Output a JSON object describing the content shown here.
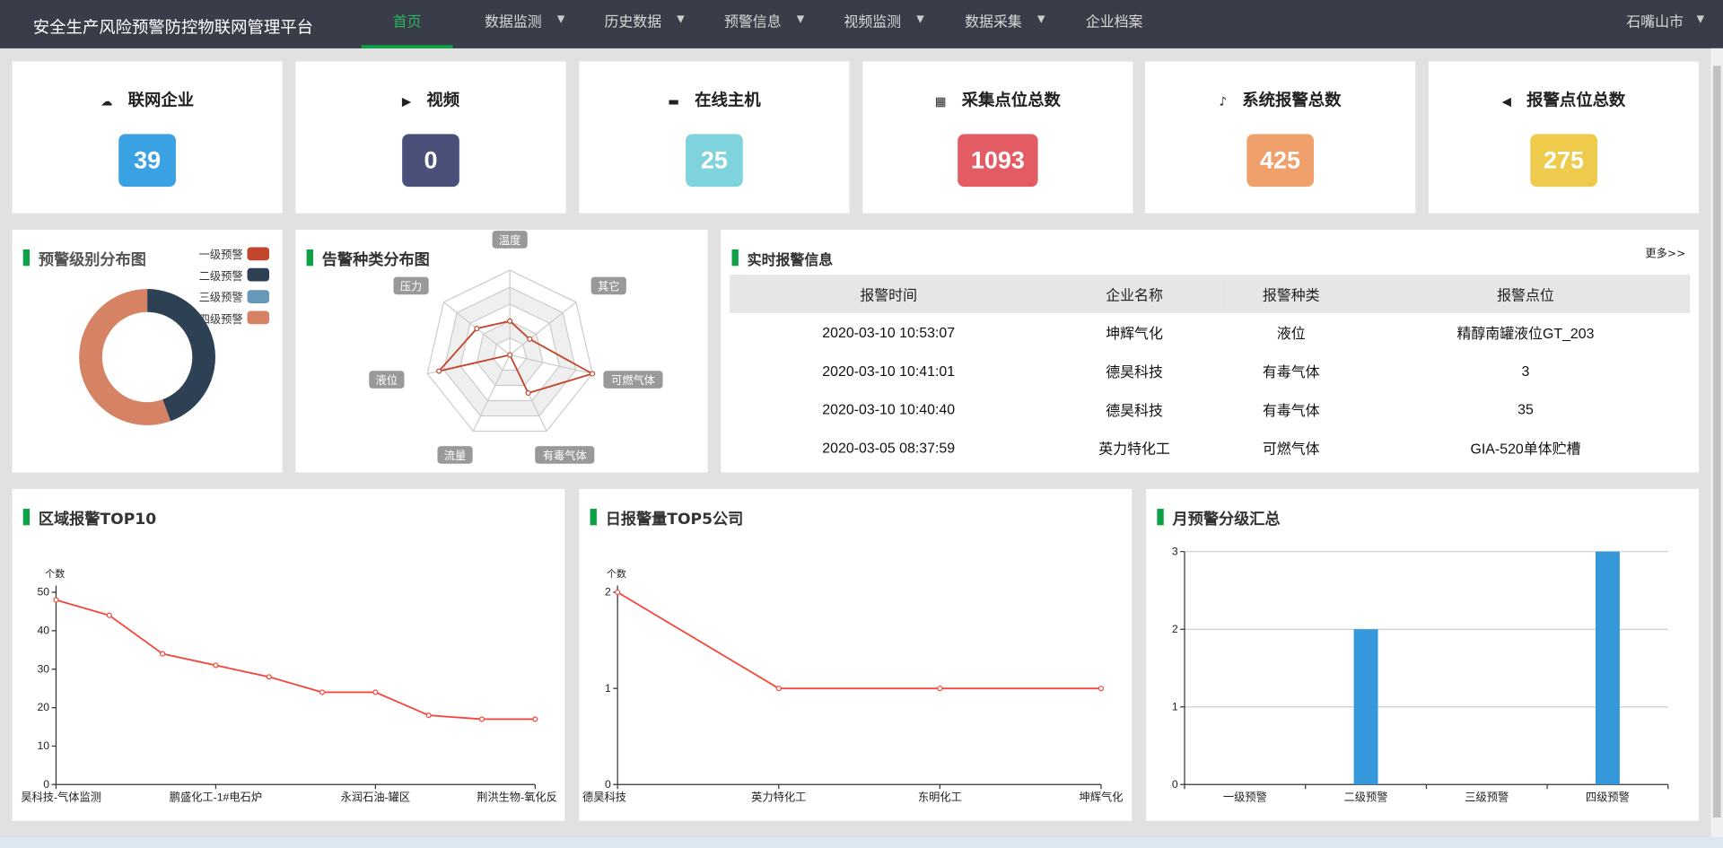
{
  "header": {
    "title": "安全生产风险预警防控物联网管理平台",
    "nav": [
      {
        "label": "首页",
        "active": true,
        "dropdown": false
      },
      {
        "label": "数据监测",
        "dropdown": true
      },
      {
        "label": "历史数据",
        "dropdown": true
      },
      {
        "label": "预警信息",
        "dropdown": true
      },
      {
        "label": "视频监测",
        "dropdown": true
      },
      {
        "label": "数据采集",
        "dropdown": true
      },
      {
        "label": "企业档案",
        "dropdown": false
      }
    ],
    "city": "石嘴山市"
  },
  "stats": [
    {
      "label": "联网企业",
      "value": "39",
      "icon": "cloud-upload-icon",
      "color": "#3aa1e2"
    },
    {
      "label": "视频",
      "value": "0",
      "icon": "video-icon",
      "color": "#4a5079"
    },
    {
      "label": "在线主机",
      "value": "25",
      "icon": "window-icon",
      "color": "#7fd3dc"
    },
    {
      "label": "采集点位总数",
      "value": "1093",
      "icon": "calendar-icon",
      "color": "#e45c63"
    },
    {
      "label": "系统报警总数",
      "value": "425",
      "icon": "bell-icon",
      "color": "#f0a06a"
    },
    {
      "label": "报警点位总数",
      "value": "275",
      "icon": "speaker-icon",
      "color": "#efcb4d"
    }
  ],
  "level_chart": {
    "title": "预警级别分布图",
    "chart_data": {
      "type": "pie",
      "donut": true,
      "categories": [
        "一级预警",
        "二级预警",
        "三级预警",
        "四级预警"
      ],
      "values": [
        0,
        4,
        0,
        5
      ],
      "colors": [
        "#c1462b",
        "#2e4154",
        "#6599b7",
        "#d58265"
      ]
    }
  },
  "radar_chart": {
    "title": "告警种类分布图",
    "chart_data": {
      "type": "radar",
      "indicators": [
        "温度",
        "其它",
        "可燃气体",
        "有毒气体",
        "流量",
        "液位",
        "压力"
      ],
      "values": [
        2,
        1.5,
        5,
        2.5,
        0,
        4.3,
        2.5
      ],
      "max": 5,
      "color": "#c1462b"
    }
  },
  "realtime": {
    "title": "实时报警信息",
    "more": "更多>>",
    "columns": [
      "报警时间",
      "企业名称",
      "报警种类",
      "报警点位"
    ],
    "rows": [
      [
        "2020-03-10 10:53:07",
        "坤辉气化",
        "液位",
        "精醇南罐液位GT_203"
      ],
      [
        "2020-03-10 10:41:01",
        "德昊科技",
        "有毒气体",
        "3"
      ],
      [
        "2020-03-10 10:40:40",
        "德昊科技",
        "有毒气体",
        "35"
      ],
      [
        "2020-03-05 08:37:59",
        "英力特化工",
        "可燃气体",
        "GIA-520单体贮槽"
      ]
    ]
  },
  "chart_data": [
    {
      "type": "line",
      "title": "区域报警TOP10",
      "ylabel": "个数",
      "ylim": [
        0,
        50
      ],
      "yticks": [
        0,
        10,
        20,
        30,
        40,
        50
      ],
      "categories": [
        "昊科技-气体监测",
        "",
        "",
        "鹏盛化工-1#电石炉",
        "",
        "",
        "永润石油-罐区",
        "",
        "",
        "荆洪生物-氧化反"
      ],
      "values": [
        48,
        44,
        34,
        31,
        28,
        24,
        24,
        18,
        17,
        17
      ],
      "color": "#f4483c"
    },
    {
      "type": "line",
      "title": "日报警量TOP5公司",
      "ylabel": "个数",
      "ylim": [
        0,
        2
      ],
      "yticks": [
        0,
        1,
        2
      ],
      "categories": [
        "德昊科技",
        "英力特化工",
        "东明化工",
        "坤辉气化"
      ],
      "values": [
        2,
        1,
        1,
        1
      ],
      "color": "#f4483c"
    },
    {
      "type": "bar",
      "title": "月预警分级汇总",
      "ylim": [
        0,
        3
      ],
      "yticks": [
        0,
        1,
        2,
        3
      ],
      "grid": true,
      "categories": [
        "一级预警",
        "二级预警",
        "三级预警",
        "四级预警"
      ],
      "values": [
        0,
        2,
        0,
        3
      ],
      "color": "#3498db"
    }
  ]
}
